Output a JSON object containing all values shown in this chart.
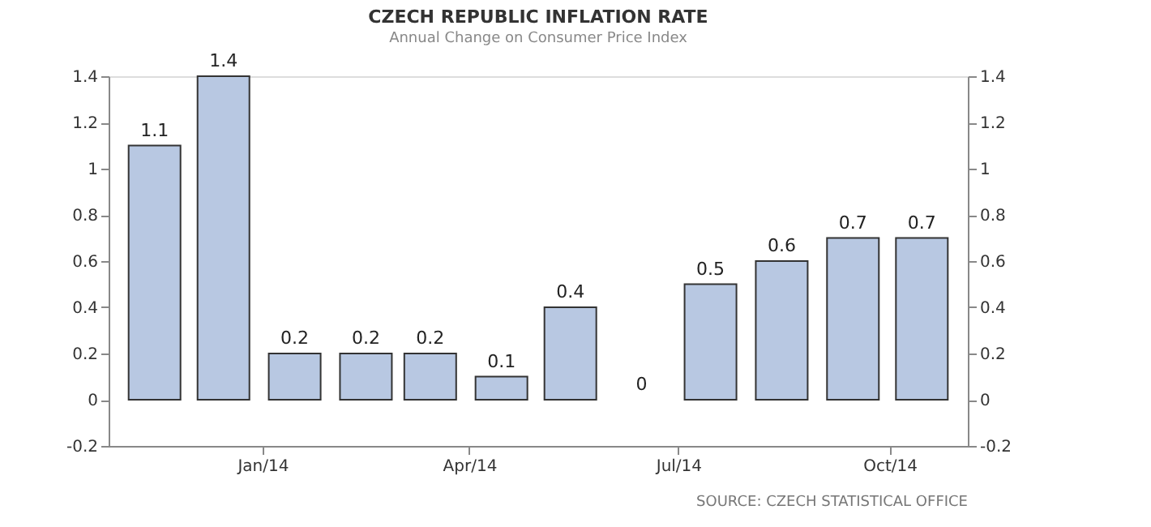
{
  "chart_data": {
    "type": "bar",
    "title": "CZECH REPUBLIC INFLATION RATE",
    "subtitle": "Annual Change on Consumer Price Index",
    "x": [
      "2013-11-15",
      "2013-12-15",
      "2014-01-15",
      "2014-02-15",
      "2014-03-15",
      "2014-04-15",
      "2014-05-15",
      "2014-06-15",
      "2014-07-15",
      "2014-08-15",
      "2014-09-15",
      "2014-10-15"
    ],
    "values": [
      1.1,
      1.4,
      0.2,
      0.2,
      0.2,
      0.1,
      0.4,
      0,
      0.5,
      0.6,
      0.7,
      0.7
    ],
    "color": "#b8c8e2",
    "data_labels": true,
    "xlim": [
      "2013-10-26",
      "2014-11-04"
    ],
    "xticks": [
      {
        "value": "2014-01",
        "label": "Jan/14"
      },
      {
        "value": "2014-04",
        "label": "Apr/14"
      },
      {
        "value": "2014-07",
        "label": "Jul/14"
      },
      {
        "value": "2014-10",
        "label": "Oct/14"
      }
    ],
    "ylim": [
      -0.2,
      1.4
    ],
    "yticks": [
      -0.2,
      0,
      0.2,
      0.4,
      0.6,
      0.8,
      1,
      1.2,
      1.4
    ],
    "y2lim": [
      -0.2,
      1.4
    ],
    "y2ticks": [
      -0.2,
      0,
      0.2,
      0.4,
      0.6,
      0.8,
      1,
      1.2,
      1.4
    ],
    "grid": false,
    "annotations": [
      "SOURCE: CZECH STATISTICAL OFFICE"
    ]
  }
}
